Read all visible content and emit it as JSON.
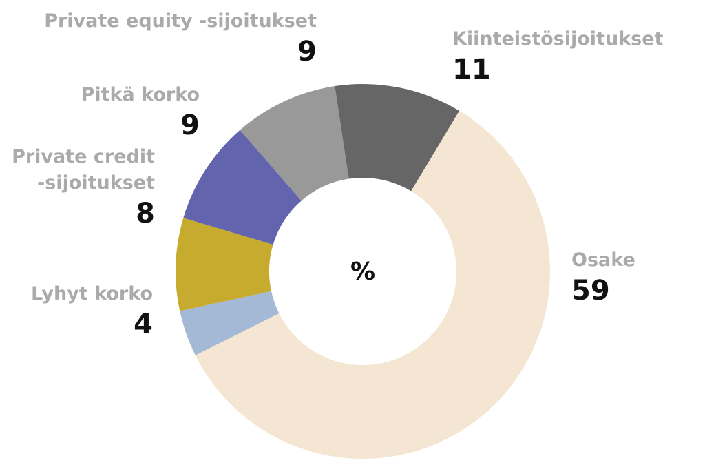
{
  "chart_data": {
    "type": "donut",
    "center_label": "%",
    "categories": [
      "Osake",
      "Lyhyt korko",
      "Private credit -sijoitukset",
      "Pitkä korko",
      "Private equity -sijoitukset",
      "Kiinteistösijoitukset"
    ],
    "values": [
      59,
      4,
      8,
      9,
      9,
      11
    ],
    "colors": [
      "#f4e6d2",
      "#a3b9d5",
      "#c6ab2e",
      "#6264ae",
      "#999999",
      "#666666"
    ]
  }
}
